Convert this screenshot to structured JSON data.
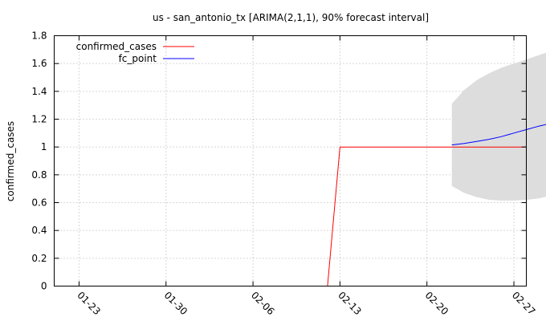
{
  "chart_data": {
    "type": "line",
    "title": "us - san_antonio_tx [ARIMA(2,1,1), 90% forecast interval]",
    "xlabel": "",
    "ylabel": "confirmed_cases",
    "x_ticks": [
      "01-23",
      "01-30",
      "02-06",
      "02-13",
      "02-20",
      "02-27"
    ],
    "y_ticks": [
      "0",
      "0.2",
      "0.4",
      "0.6",
      "0.8",
      "1",
      "1.2",
      "1.4",
      "1.6",
      "1.8"
    ],
    "xlim": [
      "2020-01-21",
      "2020-02-28"
    ],
    "ylim": [
      0,
      1.8
    ],
    "grid": true,
    "legend_position": "top-left",
    "series": [
      {
        "name": "confirmed_cases",
        "color": "#ff0000",
        "points": [
          {
            "x": "2020-02-12",
            "y": 0
          },
          {
            "x": "2020-02-13",
            "y": 1
          },
          {
            "x": "2020-02-14",
            "y": 1
          },
          {
            "x": "2020-02-15",
            "y": 1
          },
          {
            "x": "2020-02-16",
            "y": 1
          },
          {
            "x": "2020-02-17",
            "y": 1
          },
          {
            "x": "2020-02-18",
            "y": 1
          },
          {
            "x": "2020-02-19",
            "y": 1
          },
          {
            "x": "2020-02-20",
            "y": 1
          },
          {
            "x": "2020-02-21",
            "y": 1
          },
          {
            "x": "2020-02-22",
            "y": 1
          },
          {
            "x": "2020-02-23",
            "y": 1
          },
          {
            "x": "2020-02-24",
            "y": 1
          },
          {
            "x": "2020-02-25",
            "y": 1
          },
          {
            "x": "2020-02-26",
            "y": 1
          },
          {
            "x": "2020-02-27",
            "y": 1
          },
          {
            "x": "2020-02-28",
            "y": 1
          }
        ]
      },
      {
        "name": "fc_point",
        "color": "#0000ff",
        "points": [
          {
            "x": "2020-02-22",
            "y": 1.015
          },
          {
            "x": "2020-02-23",
            "y": 1.025
          },
          {
            "x": "2020-02-24",
            "y": 1.04
          },
          {
            "x": "2020-02-25",
            "y": 1.055
          },
          {
            "x": "2020-02-26",
            "y": 1.075
          },
          {
            "x": "2020-02-27",
            "y": 1.1
          },
          {
            "x": "2020-02-28",
            "y": 1.125
          },
          {
            "x": "2020-02-29",
            "y": 1.15
          },
          {
            "x": "2020-03-01",
            "y": 1.17
          }
        ]
      }
    ],
    "interval": {
      "color": "#dddddd",
      "points": [
        {
          "x": "2020-02-22",
          "lo": 0.72,
          "hi": 1.31
        },
        {
          "x": "2020-02-23",
          "lo": 0.67,
          "hi": 1.41
        },
        {
          "x": "2020-02-24",
          "lo": 0.64,
          "hi": 1.48
        },
        {
          "x": "2020-02-25",
          "lo": 0.62,
          "hi": 1.53
        },
        {
          "x": "2020-02-26",
          "lo": 0.615,
          "hi": 1.57
        },
        {
          "x": "2020-02-27",
          "lo": 0.615,
          "hi": 1.6
        },
        {
          "x": "2020-02-28",
          "lo": 0.62,
          "hi": 1.63
        },
        {
          "x": "2020-02-29",
          "lo": 0.63,
          "hi": 1.66
        },
        {
          "x": "2020-03-01",
          "lo": 0.65,
          "hi": 1.69
        }
      ]
    }
  }
}
